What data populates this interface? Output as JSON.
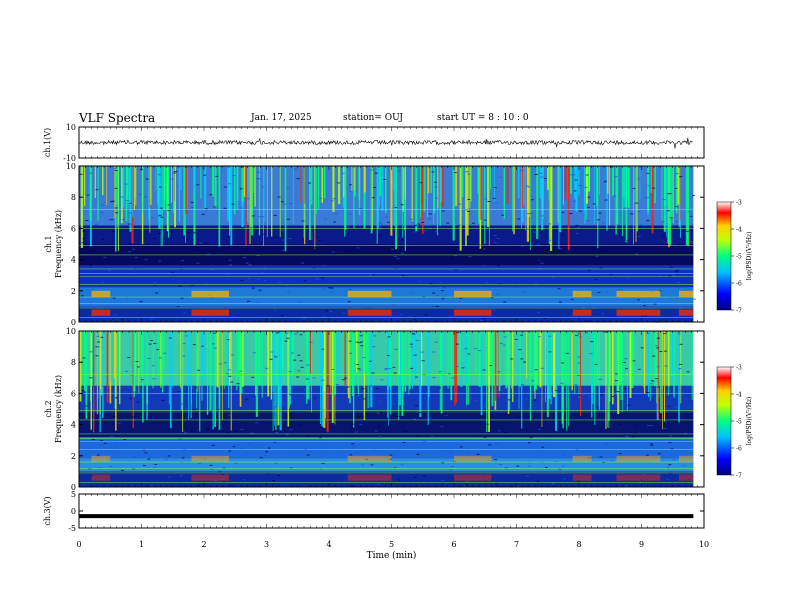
{
  "header": {
    "title": "VLF Spectra",
    "date": "Jan. 17, 2025",
    "station": "station= OUJ",
    "start": "start UT =  8 : 10 : 0"
  },
  "chart_data": [
    {
      "type": "line",
      "panel": "ch1-waveform",
      "ylabel": "ch.1(V)",
      "ylim": [
        -10,
        10
      ],
      "yticks": [
        "10",
        "-10"
      ],
      "baseline_v": 0
    },
    {
      "type": "heatmap",
      "panel": "ch1-spectrogram",
      "ylabel": [
        "ch.1",
        "Frequency (kHz)"
      ],
      "ylim": [
        0,
        10
      ],
      "yticks": [
        "0",
        "2",
        "4",
        "6",
        "8",
        "10"
      ],
      "colorbar": {
        "label": "log(PSD)(V²/Hz)",
        "range": [
          -7,
          -3
        ],
        "ticks": [
          "-3",
          "-4",
          "-5",
          "-6",
          "-7"
        ]
      }
    },
    {
      "type": "heatmap",
      "panel": "ch2-spectrogram",
      "ylabel": [
        "ch.2",
        "Frequency (kHz)"
      ],
      "ylim": [
        0,
        10
      ],
      "yticks": [
        "0",
        "2",
        "4",
        "6",
        "8",
        "10"
      ],
      "colorbar": {
        "label": "log(PSD)(V²/Hz)",
        "range": [
          -7,
          -3
        ],
        "ticks": [
          "-3",
          "-4",
          "-5",
          "-6",
          "-7"
        ]
      }
    },
    {
      "type": "line",
      "panel": "ch3-waveform",
      "ylabel": "ch.3(V)",
      "ylim": [
        -5,
        5
      ],
      "yticks": [
        "5",
        "0",
        "-5"
      ],
      "constant_v": -1.5
    }
  ],
  "xaxis": {
    "xlabel": "Time (min)",
    "xlim": [
      0,
      10
    ],
    "ticks": [
      "0",
      "1",
      "2",
      "3",
      "4",
      "5",
      "6",
      "7",
      "8",
      "9",
      "10"
    ],
    "data_end_min": 9.83
  }
}
